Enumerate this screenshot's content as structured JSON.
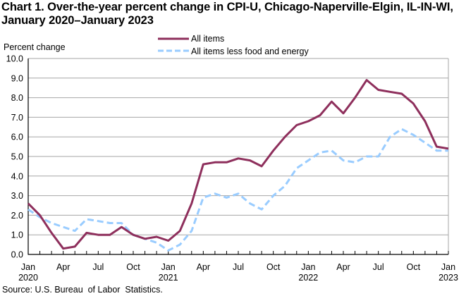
{
  "chart_data": {
    "type": "line",
    "title": "Chart 1. Over-the-year percent change in CPI-U, Chicago-Naperville-Elgin,  IL-IN-WI,",
    "subtitle": "January 2020–January 2023",
    "ylabel": "Percent change",
    "xlabel": "",
    "ylim": [
      0,
      10
    ],
    "y_ticks": [
      "0.0",
      "1.0",
      "2.0",
      "3.0",
      "4.0",
      "5.0",
      "6.0",
      "7.0",
      "8.0",
      "9.0",
      "10.0"
    ],
    "x_tick_labels": [
      {
        "month_index": 0,
        "line1": "Jan",
        "line2": "2020"
      },
      {
        "month_index": 3,
        "line1": "Apr",
        "line2": ""
      },
      {
        "month_index": 6,
        "line1": "Jul",
        "line2": ""
      },
      {
        "month_index": 9,
        "line1": "Oct",
        "line2": ""
      },
      {
        "month_index": 12,
        "line1": "Jan",
        "line2": "2021"
      },
      {
        "month_index": 15,
        "line1": "Apr",
        "line2": ""
      },
      {
        "month_index": 18,
        "line1": "Jul",
        "line2": ""
      },
      {
        "month_index": 21,
        "line1": "Oct",
        "line2": ""
      },
      {
        "month_index": 24,
        "line1": "Jan",
        "line2": "2022"
      },
      {
        "month_index": 27,
        "line1": "Apr",
        "line2": ""
      },
      {
        "month_index": 30,
        "line1": "Jul",
        "line2": ""
      },
      {
        "month_index": 33,
        "line1": "Oct",
        "line2": ""
      },
      {
        "month_index": 36,
        "line1": "Jan",
        "line2": "2023"
      }
    ],
    "x": [
      "2020-01",
      "2020-02",
      "2020-03",
      "2020-04",
      "2020-05",
      "2020-06",
      "2020-07",
      "2020-08",
      "2020-09",
      "2020-10",
      "2020-11",
      "2020-12",
      "2021-01",
      "2021-02",
      "2021-03",
      "2021-04",
      "2021-05",
      "2021-06",
      "2021-07",
      "2021-08",
      "2021-09",
      "2021-10",
      "2021-11",
      "2021-12",
      "2022-01",
      "2022-02",
      "2022-03",
      "2022-04",
      "2022-05",
      "2022-06",
      "2022-07",
      "2022-08",
      "2022-09",
      "2022-10",
      "2022-11",
      "2022-12",
      "2023-01"
    ],
    "series": [
      {
        "name": "All items",
        "color": "#8E2F5C",
        "style": "solid",
        "values": [
          2.6,
          2.0,
          1.1,
          0.3,
          0.4,
          1.1,
          1.0,
          1.0,
          1.4,
          1.0,
          0.8,
          0.9,
          0.7,
          1.2,
          2.6,
          4.6,
          4.7,
          4.7,
          4.9,
          4.8,
          4.5,
          5.3,
          6.0,
          6.6,
          6.8,
          7.1,
          7.8,
          7.2,
          8.0,
          8.9,
          8.4,
          8.3,
          8.2,
          7.7,
          6.8,
          5.5,
          5.4
        ]
      },
      {
        "name": "All items less food and energy",
        "color": "#99CCFF",
        "style": "dashed",
        "values": [
          2.3,
          1.9,
          1.6,
          1.4,
          1.2,
          1.8,
          1.7,
          1.6,
          1.6,
          1.0,
          0.8,
          0.6,
          0.2,
          0.5,
          1.2,
          2.9,
          3.1,
          2.9,
          3.1,
          2.6,
          2.3,
          3.0,
          3.5,
          4.4,
          4.8,
          5.2,
          5.3,
          4.8,
          4.7,
          5.0,
          5.0,
          6.0,
          6.4,
          6.1,
          5.7,
          5.3,
          5.3
        ]
      }
    ],
    "grid": true,
    "legend_position": "top-center",
    "source": "Source: U.S. Bureau  of Labor  Statistics."
  }
}
